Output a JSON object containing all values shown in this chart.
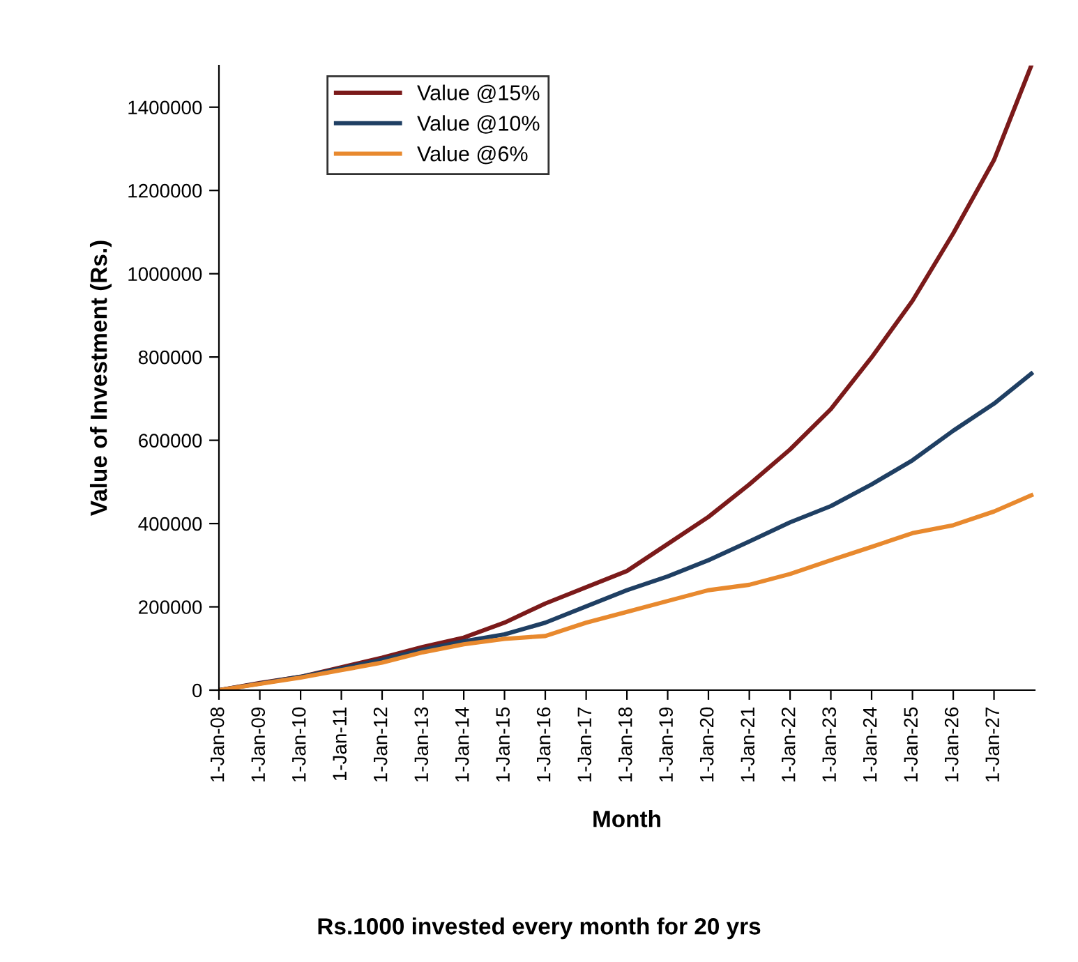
{
  "chart_data": {
    "type": "line",
    "xlabel": "Month",
    "ylabel": "Value of Investment (Rs.)",
    "annotations": [
      "Rs.1000 invested every month for 20 yrs"
    ],
    "x": [
      "2008-01",
      "2009-01",
      "2010-01",
      "2011-01",
      "2012-01",
      "2013-01",
      "2014-01",
      "2015-01",
      "2016-01",
      "2017-01",
      "2018-01",
      "2019-01",
      "2020-01",
      "2021-01",
      "2022-01",
      "2023-01",
      "2024-01",
      "2025-01",
      "2026-01",
      "2027-01",
      "2027-12"
    ],
    "series": [
      {
        "name": "Value @15%",
        "color": "#7b1a1a",
        "values": [
          0,
          17000,
          32000,
          55000,
          78000,
          104000,
          126000,
          162000,
          208000,
          247000,
          286000,
          351000,
          416000,
          494000,
          578000,
          675000,
          799000,
          935000,
          1097000,
          1273000,
          1500000
        ]
      },
      {
        "name": "Value @10%",
        "color": "#1f3f63",
        "values": [
          0,
          16000,
          32000,
          52000,
          73000,
          97000,
          117000,
          134000,
          162000,
          201000,
          240000,
          273000,
          312000,
          357000,
          403000,
          442000,
          494000,
          552000,
          623000,
          688000,
          760000
        ]
      },
      {
        "name": "Value @6%",
        "color": "#e8892e",
        "values": [
          0,
          15000,
          30000,
          48000,
          66000,
          91000,
          110000,
          123000,
          130000,
          162000,
          188000,
          214000,
          240000,
          253000,
          279000,
          312000,
          344000,
          377000,
          396000,
          429000,
          468000
        ]
      }
    ],
    "xlim": [
      "2008-01",
      "2028-01"
    ],
    "xticks": [
      {
        "value": "2008-01-01",
        "label": "1-Jan-08"
      },
      {
        "value": "2009-01-01",
        "label": "1-Jan-09"
      },
      {
        "value": "2010-01-01",
        "label": "1-Jan-10"
      },
      {
        "value": "2011-01-01",
        "label": "1-Jan-11"
      },
      {
        "value": "2012-01-01",
        "label": "1-Jan-12"
      },
      {
        "value": "2013-01-01",
        "label": "1-Jan-13"
      },
      {
        "value": "2014-01-01",
        "label": "1-Jan-14"
      },
      {
        "value": "2015-01-01",
        "label": "1-Jan-15"
      },
      {
        "value": "2016-01-01",
        "label": "1-Jan-16"
      },
      {
        "value": "2017-01-01",
        "label": "1-Jan-17"
      },
      {
        "value": "2018-01-01",
        "label": "1-Jan-18"
      },
      {
        "value": "2019-01-01",
        "label": "1-Jan-19"
      },
      {
        "value": "2020-01-01",
        "label": "1-Jan-20"
      },
      {
        "value": "2021-01-01",
        "label": "1-Jan-21"
      },
      {
        "value": "2022-01-01",
        "label": "1-Jan-22"
      },
      {
        "value": "2023-01-01",
        "label": "1-Jan-23"
      },
      {
        "value": "2024-01-01",
        "label": "1-Jan-24"
      },
      {
        "value": "2025-01-01",
        "label": "1-Jan-25"
      },
      {
        "value": "2026-01-01",
        "label": "1-Jan-26"
      },
      {
        "value": "2027-01-01",
        "label": "1-Jan-27"
      }
    ],
    "ylim": [
      0,
      1500000
    ],
    "yticks": [
      0,
      200000,
      400000,
      600000,
      800000,
      1000000,
      1200000,
      1400000
    ],
    "grid": false,
    "legend": "top left",
    "marker": "none",
    "line_style": "solid"
  }
}
